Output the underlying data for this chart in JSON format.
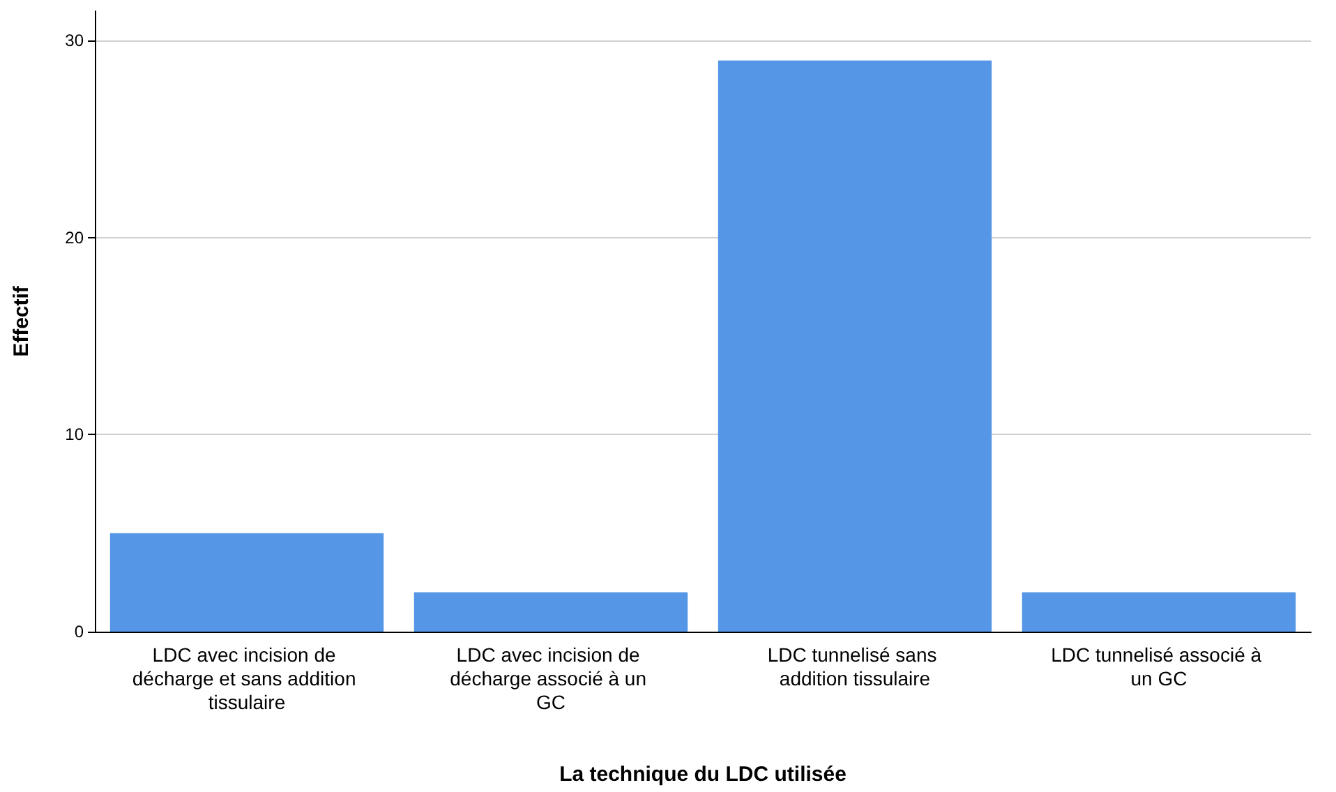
{
  "chart_data": {
    "type": "bar",
    "xlabel": "La technique du LDC utilisée",
    "ylabel": "Effectif",
    "categories": [
      "LDC avec incision de décharge et sans addition tissulaire",
      "LDC avec incision de décharge associé à un GC",
      "LDC tunnelisé sans addition tissulaire",
      "LDC tunnelisé associé à un GC"
    ],
    "values": [
      5,
      2,
      29,
      2
    ],
    "color": "#5596e6",
    "ylim": [
      0,
      31.5
    ],
    "yticks": [
      0,
      10,
      20,
      30
    ],
    "grid": "y"
  }
}
